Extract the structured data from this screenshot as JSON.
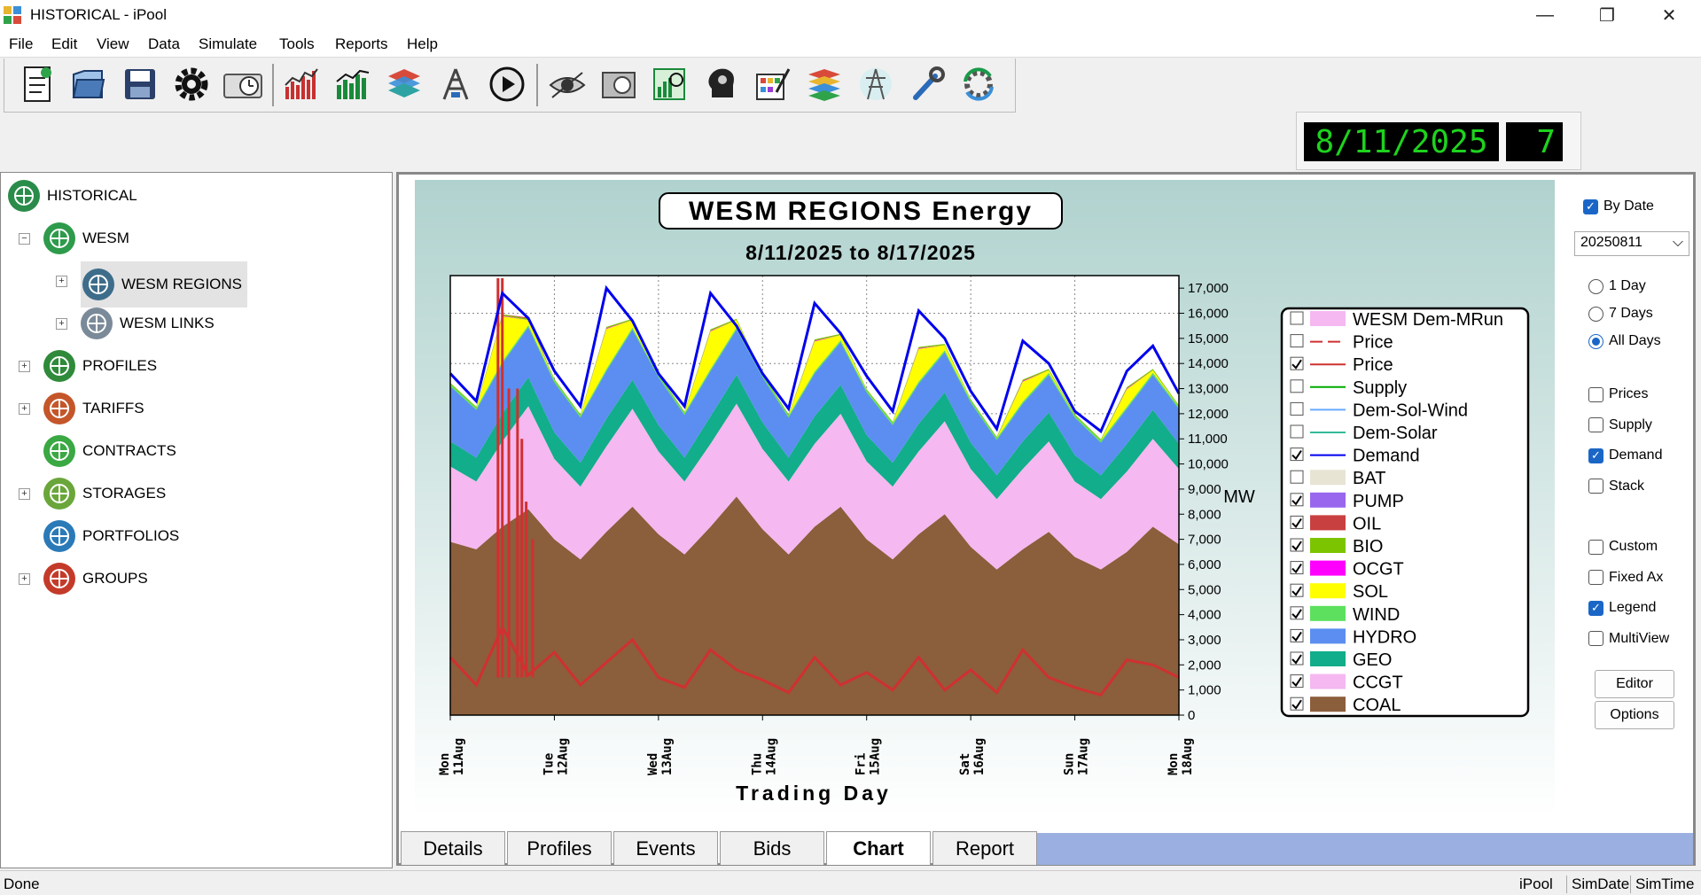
{
  "window": {
    "title": "HISTORICAL - iPool",
    "min_glyph": "—",
    "max_glyph": "❐",
    "close_glyph": "✕"
  },
  "menu": [
    "File",
    "Edit",
    "View",
    "Data",
    "Simulate",
    "Tools",
    "Reports",
    "Help"
  ],
  "toolbar_icons": [
    "new-file-icon",
    "open-file-icon",
    "save-icon",
    "settings-gear-icon",
    "clock-icon",
    "line-chart-icon",
    "bar-chart-icon",
    "layers-icon",
    "tower-icon",
    "play-icon",
    "eye-icon",
    "filter-icon",
    "grid-chart-icon",
    "head-gear-icon",
    "palette-icon",
    "stack-icon",
    "transmission-tower-icon",
    "wrench-icon",
    "refresh-gear-icon"
  ],
  "date_display": {
    "date": "8/11/2025",
    "days": "7"
  },
  "tree": {
    "items": [
      {
        "label": "HISTORICAL",
        "level": 0,
        "expander": "",
        "color": "#2a8c4a",
        "icon": "globe-icon"
      },
      {
        "label": "WESM",
        "level": 1,
        "expander": "−",
        "color": "#2e9a4b",
        "icon": "network-icon"
      },
      {
        "label": "WESM REGIONS",
        "level": 2,
        "expander": "+",
        "color": "#3d6d8a",
        "icon": "region-globe-icon",
        "selected": true
      },
      {
        "label": "WESM LINKS",
        "level": 2,
        "expander": "+",
        "color": "#7a8a99",
        "icon": "tower-icon"
      },
      {
        "label": "PROFILES",
        "level": 1,
        "expander": "+",
        "color": "#2f8a3a",
        "icon": "lightning-icon"
      },
      {
        "label": "TARIFFS",
        "level": 1,
        "expander": "+",
        "color": "#c4562a",
        "icon": "tariff-icon"
      },
      {
        "label": "CONTRACTS",
        "level": 1,
        "expander": "",
        "color": "#3aa843",
        "icon": "document-icon"
      },
      {
        "label": "STORAGES",
        "level": 1,
        "expander": "+",
        "color": "#6aa63a",
        "icon": "battery-icon"
      },
      {
        "label": "PORTFOLIOS",
        "level": 1,
        "expander": "",
        "color": "#2a7ab8",
        "icon": "portfolio-chart-icon"
      },
      {
        "label": "GROUPS",
        "level": 1,
        "expander": "+",
        "color": "#c43a2a",
        "icon": "groups-icon"
      }
    ]
  },
  "chart_data": {
    "type": "area",
    "title": "WESM REGIONS Energy",
    "subtitle": "8/11/2025 to 8/17/2025",
    "xlabel": "Trading Day",
    "ylabel": "MW",
    "ylim": [
      0,
      17500
    ],
    "yticks": [
      "0",
      "1,000",
      "2,000",
      "3,000",
      "4,000",
      "5,000",
      "6,000",
      "7,000",
      "8,000",
      "9,000",
      "10,000",
      "11,000",
      "12,000",
      "13,000",
      "14,000",
      "15,000",
      "16,000",
      "17,000"
    ],
    "xticks": [
      {
        "day": "Mon",
        "date": "11Aug"
      },
      {
        "day": "Tue",
        "date": "12Aug"
      },
      {
        "day": "Wed",
        "date": "13Aug"
      },
      {
        "day": "Thu",
        "date": "14Aug"
      },
      {
        "day": "Fri",
        "date": "15Aug"
      },
      {
        "day": "Sat",
        "date": "16Aug"
      },
      {
        "day": "Sun",
        "date": "17Aug"
      },
      {
        "day": "Mon",
        "date": "18Aug"
      }
    ],
    "grid": true,
    "legend_position": "right",
    "hours": [
      0,
      6,
      12,
      18,
      24,
      30,
      36,
      42,
      48,
      54,
      60,
      66,
      72,
      78,
      84,
      90,
      96,
      102,
      108,
      114,
      120,
      126,
      132,
      138,
      144,
      150,
      156,
      162,
      168
    ],
    "series": [
      {
        "name": "COAL",
        "color": "#8b5e3c",
        "values": [
          6900,
          6600,
          7500,
          8200,
          7000,
          6200,
          7300,
          8300,
          7200,
          6400,
          7500,
          8700,
          7400,
          6400,
          7500,
          8300,
          7000,
          6200,
          7200,
          8000,
          6700,
          5800,
          6600,
          7300,
          6300,
          5800,
          6500,
          7500,
          6800
        ]
      },
      {
        "name": "CCGT",
        "color": "#f5b8f0",
        "values": [
          3000,
          2700,
          3400,
          4100,
          3200,
          2900,
          3400,
          3900,
          3300,
          2900,
          3300,
          3700,
          3200,
          2900,
          3300,
          3700,
          3100,
          2900,
          3300,
          3700,
          3100,
          2800,
          3200,
          3600,
          3000,
          2800,
          3200,
          3500,
          3000
        ]
      },
      {
        "name": "GEO",
        "color": "#12ad8a",
        "values": [
          1000,
          950,
          1100,
          1150,
          1050,
          950,
          1100,
          1150,
          1050,
          950,
          1100,
          1150,
          1050,
          950,
          1100,
          1150,
          1050,
          950,
          1100,
          1150,
          1050,
          950,
          1100,
          1150,
          1050,
          950,
          1100,
          1150,
          1000
        ]
      },
      {
        "name": "HYDRO",
        "color": "#5b8ef0",
        "values": [
          2200,
          1900,
          2000,
          2000,
          2000,
          1800,
          1900,
          2000,
          1900,
          1700,
          1800,
          1800,
          1800,
          1600,
          1700,
          1700,
          1700,
          1500,
          1600,
          1600,
          1600,
          1400,
          1500,
          1500,
          1500,
          1300,
          1400,
          1400,
          1400
        ]
      },
      {
        "name": "WIND",
        "color": "#5de05d",
        "values": [
          80,
          80,
          80,
          80,
          80,
          80,
          80,
          80,
          80,
          80,
          80,
          80,
          80,
          80,
          80,
          80,
          80,
          80,
          80,
          80,
          80,
          80,
          80,
          80,
          80,
          80,
          80,
          80,
          80
        ]
      },
      {
        "name": "SOL",
        "color": "#ffff00",
        "values": [
          0,
          0,
          1800,
          200,
          0,
          0,
          1600,
          300,
          0,
          0,
          1500,
          300,
          0,
          0,
          1200,
          200,
          0,
          0,
          1300,
          200,
          0,
          0,
          800,
          100,
          0,
          0,
          700,
          100,
          0
        ]
      },
      {
        "name": "OCGT",
        "color": "#ff00ff",
        "values": [
          0,
          0,
          30,
          0,
          0,
          0,
          30,
          0,
          0,
          0,
          30,
          0,
          0,
          0,
          30,
          0,
          0,
          0,
          30,
          0,
          0,
          0,
          30,
          0,
          0,
          0,
          30,
          0,
          0
        ]
      },
      {
        "name": "BIO",
        "color": "#7dc400",
        "values": [
          50,
          50,
          50,
          50,
          50,
          50,
          50,
          50,
          50,
          50,
          50,
          50,
          50,
          50,
          50,
          50,
          50,
          50,
          50,
          50,
          50,
          50,
          50,
          50,
          50,
          50,
          50,
          50,
          50
        ]
      },
      {
        "name": "OIL",
        "color": "#c84040",
        "values": [
          0,
          0,
          0,
          50,
          0,
          0,
          0,
          0,
          0,
          0,
          0,
          0,
          0,
          0,
          0,
          0,
          0,
          0,
          0,
          0,
          0,
          0,
          0,
          0,
          0,
          0,
          0,
          0,
          0
        ]
      },
      {
        "name": "PUMP",
        "color": "#9966ee",
        "values": [
          0,
          0,
          0,
          0,
          0,
          0,
          0,
          0,
          0,
          0,
          0,
          0,
          0,
          0,
          0,
          0,
          0,
          0,
          0,
          0,
          0,
          0,
          0,
          0,
          0,
          0,
          0,
          0,
          0
        ]
      }
    ],
    "demand": {
      "name": "Demand",
      "color": "#0000ee",
      "values": [
        13600,
        12500,
        16800,
        15800,
        13700,
        12300,
        17000,
        15700,
        13600,
        12300,
        16800,
        15500,
        13600,
        12200,
        16400,
        15200,
        13500,
        12100,
        16100,
        15000,
        12900,
        11400,
        14900,
        14000,
        12100,
        11300,
        13700,
        14700,
        12800
      ]
    },
    "price": {
      "name": "Price",
      "color": "#d03030",
      "values": [
        2300,
        1200,
        3500,
        1600,
        2500,
        1200,
        2100,
        3000,
        1500,
        1100,
        2600,
        1800,
        1400,
        900,
        2300,
        1200,
        1700,
        1000,
        2300,
        1000,
        1800,
        900,
        2600,
        1500,
        1100,
        800,
        2200,
        2000,
        1500
      ],
      "spikes": [
        {
          "x": 11,
          "y": 17400
        },
        {
          "x": 12,
          "y": 17400
        },
        {
          "x": 13.5,
          "y": 13000
        },
        {
          "x": 15.5,
          "y": 13000
        },
        {
          "x": 16.5,
          "y": 11000
        },
        {
          "x": 17.5,
          "y": 8500
        },
        {
          "x": 19,
          "y": 7000
        }
      ]
    },
    "legend": [
      {
        "label": "WESM Dem-MRun",
        "checked": false,
        "swatch": "fill",
        "color": "#f5b8f0"
      },
      {
        "label": "Price",
        "checked": false,
        "swatch": "dash",
        "color": "#d03030"
      },
      {
        "label": "Price",
        "checked": true,
        "swatch": "line",
        "color": "#d03030"
      },
      {
        "label": "Supply",
        "checked": false,
        "swatch": "line",
        "color": "#00aa00"
      },
      {
        "label": "Dem-Sol-Wind",
        "checked": false,
        "swatch": "line",
        "color": "#66aaff"
      },
      {
        "label": "Dem-Solar",
        "checked": false,
        "swatch": "line",
        "color": "#33bb99"
      },
      {
        "label": "Demand",
        "checked": true,
        "swatch": "line",
        "color": "#0000ee"
      },
      {
        "label": "BAT",
        "checked": false,
        "swatch": "fill",
        "color": "#e8e4d4"
      },
      {
        "label": "PUMP",
        "checked": true,
        "swatch": "fill",
        "color": "#9966ee"
      },
      {
        "label": "OIL",
        "checked": true,
        "swatch": "fill",
        "color": "#c84040"
      },
      {
        "label": "BIO",
        "checked": true,
        "swatch": "fill",
        "color": "#7dc400"
      },
      {
        "label": "OCGT",
        "checked": true,
        "swatch": "fill",
        "color": "#ff00ff"
      },
      {
        "label": "SOL",
        "checked": true,
        "swatch": "fill",
        "color": "#ffff00"
      },
      {
        "label": "WIND",
        "checked": true,
        "swatch": "fill",
        "color": "#5de05d"
      },
      {
        "label": "HYDRO",
        "checked": true,
        "swatch": "fill",
        "color": "#5b8ef0"
      },
      {
        "label": "GEO",
        "checked": true,
        "swatch": "fill",
        "color": "#12ad8a"
      },
      {
        "label": "CCGT",
        "checked": true,
        "swatch": "fill",
        "color": "#f5b8f0"
      },
      {
        "label": "COAL",
        "checked": true,
        "swatch": "fill",
        "color": "#8b5e3c"
      }
    ]
  },
  "controls": {
    "by_date": {
      "label": "By Date",
      "checked": true
    },
    "date_select": "20250811",
    "range_options": [
      {
        "label": "1 Day",
        "selected": false
      },
      {
        "label": "7 Days",
        "selected": false
      },
      {
        "label": "All Days",
        "selected": true
      }
    ],
    "checks1": [
      {
        "label": "Prices",
        "checked": false
      },
      {
        "label": "Supply",
        "checked": false
      },
      {
        "label": "Demand",
        "checked": true
      },
      {
        "label": "Stack",
        "checked": false
      }
    ],
    "checks2": [
      {
        "label": "Custom",
        "checked": false
      },
      {
        "label": "Fixed Ax",
        "checked": false
      },
      {
        "label": "Legend",
        "checked": true
      },
      {
        "label": "MultiView",
        "checked": false
      }
    ],
    "editor_label": "Editor",
    "options_label": "Options"
  },
  "tabs": [
    {
      "label": "Details",
      "active": false
    },
    {
      "label": "Profiles",
      "active": false
    },
    {
      "label": "Events",
      "active": false
    },
    {
      "label": "Bids",
      "active": false
    },
    {
      "label": "Chart",
      "active": true
    },
    {
      "label": "Report",
      "active": false
    }
  ],
  "status": {
    "left": "Done",
    "items": [
      "iPool",
      "SimDate",
      "SimTime"
    ]
  }
}
